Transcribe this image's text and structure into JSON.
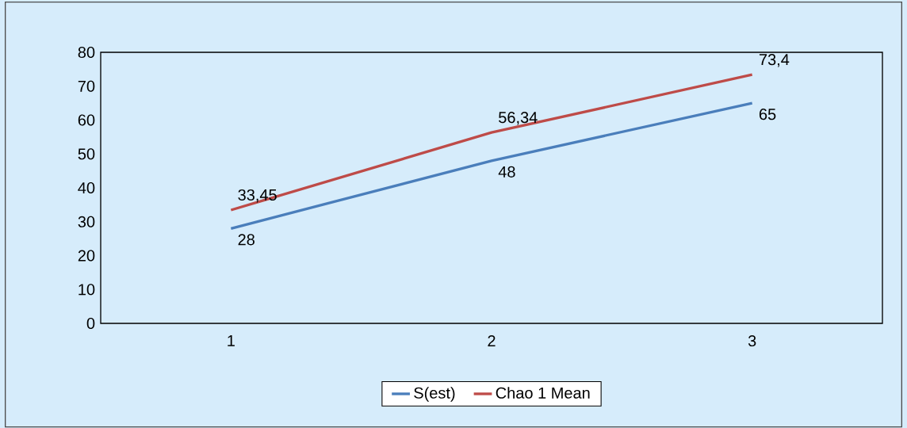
{
  "chart_data": {
    "type": "line",
    "categories": [
      "1",
      "2",
      "3"
    ],
    "series": [
      {
        "name": "S(est)",
        "color": "#4a7ebb",
        "values": [
          28,
          48,
          65
        ],
        "value_labels": [
          "28",
          "48",
          "65"
        ]
      },
      {
        "name": "Chao 1 Mean",
        "color": "#be4b48",
        "values": [
          33.45,
          56.34,
          73.4
        ],
        "value_labels": [
          "33,45",
          "56,34",
          "73,4"
        ]
      }
    ],
    "ylim": [
      0,
      80
    ],
    "yticks": [
      0,
      10,
      20,
      30,
      40,
      50,
      60,
      70,
      80
    ],
    "grid": false,
    "legend": "bottom",
    "marker": "none",
    "line_style": "solid"
  }
}
